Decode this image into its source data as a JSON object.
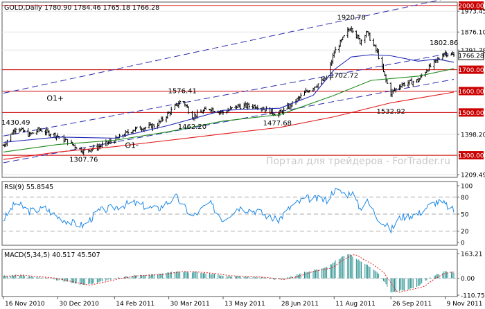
{
  "chart_data": [
    {
      "type": "line",
      "panel": "price",
      "title": "GOLD,Daily",
      "ohlc_header": "1780.90 1784.46 1765.18 1766.28",
      "current_price": "1766.28",
      "ylim": [
        1209.49,
        2000
      ],
      "y_ticks": [
        "2000.00",
        "1973.45",
        "1876.10",
        "1791.78",
        "1700.00",
        "1600.00",
        "1500.00",
        "1398.20",
        "1300.00",
        "1209.49"
      ],
      "y_tick_values": [
        2000,
        1973.45,
        1876.1,
        1791.78,
        1700,
        1600,
        1500,
        1398.2,
        1300,
        1209.49
      ],
      "highlighted_levels": [
        {
          "label": "2000.00",
          "value": 2000
        },
        {
          "label": "1700.00",
          "value": 1700
        },
        {
          "label": "1600.00",
          "value": 1600
        },
        {
          "label": "1500.00",
          "value": 1500
        },
        {
          "label": "1300.00",
          "value": 1300
        }
      ],
      "x_ticks": [
        "16 Nov 2010",
        "30 Dec 2010",
        "14 Feb 2011",
        "30 Mar 2011",
        "13 May 2011",
        "28 Jun 2011",
        "11 Aug 2011",
        "26 Sep 2011",
        "9 Nov 2011"
      ],
      "price_annotations": [
        {
          "label": "1430.49",
          "date": "2010-11-26",
          "value": 1430.49
        },
        {
          "label": "1307.76",
          "date": "2011-01-20",
          "value": 1307.76
        },
        {
          "label": "1576.41",
          "date": "2011-04-10",
          "value": 1576.41
        },
        {
          "label": "1462.20",
          "date": "2011-04-18",
          "value": 1462.2
        },
        {
          "label": "1477.68",
          "date": "2011-06-26",
          "value": 1477.68
        },
        {
          "label": "1920.78",
          "date": "2011-08-25",
          "value": 1920.78
        },
        {
          "label": "1702.72",
          "date": "2011-08-19",
          "value": 1702.72
        },
        {
          "label": "1532.92",
          "date": "2011-09-26",
          "value": 1532.92
        },
        {
          "label": "1802.86",
          "date": "2011-11-08",
          "value": 1802.86
        }
      ],
      "text_annotations": [
        {
          "label": "O1+",
          "date": "2010-12-28",
          "value": 1555
        },
        {
          "label": "O1-",
          "date": "2011-02-28",
          "value": 1335
        }
      ],
      "channel_lines": [
        {
          "from": [
            "2010-11-16",
            1590
          ],
          "to": [
            "2011-11-16",
            2040
          ]
        },
        {
          "from": [
            "2010-11-16",
            1390
          ],
          "to": [
            "2011-11-16",
            1780
          ]
        },
        {
          "from": [
            "2010-11-16",
            1265
          ],
          "to": [
            "2011-11-16",
            1655
          ]
        }
      ],
      "watermark": "Портал для трейдеров - ForTrader.ru",
      "colors": {
        "bars": "#000000",
        "ma_fast": "#1f27b4",
        "ma_mid": "#1e8a1e",
        "ma_slow": "#e31a1a",
        "levels": "#cc0000",
        "channel": "#2a2ab0",
        "label_bg": "#cc0000"
      },
      "price_keypoints": [
        [
          "2010-11-16",
          1345
        ],
        [
          "2010-11-26",
          1430
        ],
        [
          "2010-12-07",
          1395
        ],
        [
          "2010-12-15",
          1420
        ],
        [
          "2010-12-30",
          1390
        ],
        [
          "2011-01-20",
          1320
        ],
        [
          "2011-02-01",
          1340
        ],
        [
          "2011-02-14",
          1370
        ],
        [
          "2011-03-01",
          1420
        ],
        [
          "2011-03-20",
          1440
        ],
        [
          "2011-04-10",
          1560
        ],
        [
          "2011-04-18",
          1480
        ],
        [
          "2011-05-02",
          1520
        ],
        [
          "2011-05-13",
          1500
        ],
        [
          "2011-05-25",
          1530
        ],
        [
          "2011-06-10",
          1530
        ],
        [
          "2011-06-26",
          1490
        ],
        [
          "2011-07-08",
          1540
        ],
        [
          "2011-07-20",
          1600
        ],
        [
          "2011-08-05",
          1660
        ],
        [
          "2011-08-11",
          1780
        ],
        [
          "2011-08-22",
          1880
        ],
        [
          "2011-08-25",
          1900
        ],
        [
          "2011-09-01",
          1830
        ],
        [
          "2011-09-06",
          1880
        ],
        [
          "2011-09-15",
          1780
        ],
        [
          "2011-09-22",
          1650
        ],
        [
          "2011-09-26",
          1590
        ],
        [
          "2011-10-04",
          1630
        ],
        [
          "2011-10-18",
          1650
        ],
        [
          "2011-10-25",
          1700
        ],
        [
          "2011-11-02",
          1740
        ],
        [
          "2011-11-08",
          1780
        ],
        [
          "2011-11-16",
          1766
        ]
      ],
      "ma_fast_keypoints": [
        [
          "2010-11-16",
          1360
        ],
        [
          "2010-12-30",
          1385
        ],
        [
          "2011-02-14",
          1380
        ],
        [
          "2011-03-30",
          1440
        ],
        [
          "2011-05-13",
          1510
        ],
        [
          "2011-06-28",
          1520
        ],
        [
          "2011-07-25",
          1580
        ],
        [
          "2011-08-11",
          1700
        ],
        [
          "2011-08-25",
          1760
        ],
        [
          "2011-09-10",
          1770
        ],
        [
          "2011-09-26",
          1765
        ],
        [
          "2011-10-18",
          1740
        ],
        [
          "2011-11-02",
          1750
        ],
        [
          "2011-11-16",
          1735
        ]
      ],
      "ma_mid_keypoints": [
        [
          "2010-11-16",
          1315
        ],
        [
          "2010-12-30",
          1350
        ],
        [
          "2011-02-14",
          1370
        ],
        [
          "2011-03-30",
          1410
        ],
        [
          "2011-05-13",
          1460
        ],
        [
          "2011-06-28",
          1490
        ],
        [
          "2011-08-11",
          1580
        ],
        [
          "2011-09-10",
          1650
        ],
        [
          "2011-10-18",
          1670
        ],
        [
          "2011-11-16",
          1705
        ]
      ],
      "ma_slow_keypoints": [
        [
          "2010-11-16",
          1280
        ],
        [
          "2010-12-30",
          1315
        ],
        [
          "2011-02-14",
          1340
        ],
        [
          "2011-03-30",
          1370
        ],
        [
          "2011-05-13",
          1400
        ],
        [
          "2011-06-28",
          1430
        ],
        [
          "2011-08-11",
          1480
        ],
        [
          "2011-09-26",
          1545
        ],
        [
          "2011-11-16",
          1595
        ]
      ]
    },
    {
      "type": "line",
      "panel": "rsi",
      "title": "RSI(9) 55.8545",
      "ylim": [
        0,
        100
      ],
      "y_ticks": [
        "100",
        "80",
        "50",
        "20",
        "0"
      ],
      "y_tick_values": [
        100,
        80,
        50,
        20,
        0
      ],
      "dashed_levels": [
        80,
        50,
        20
      ],
      "color": "#1e88e5",
      "keypoints": [
        [
          "2010-11-16",
          40
        ],
        [
          "2010-11-26",
          70
        ],
        [
          "2010-12-07",
          55
        ],
        [
          "2010-12-20",
          60
        ],
        [
          "2010-12-30",
          45
        ],
        [
          "2011-01-10",
          35
        ],
        [
          "2011-01-20",
          30
        ],
        [
          "2011-02-01",
          55
        ],
        [
          "2011-02-14",
          62
        ],
        [
          "2011-03-01",
          70
        ],
        [
          "2011-03-20",
          58
        ],
        [
          "2011-04-05",
          80
        ],
        [
          "2011-04-18",
          45
        ],
        [
          "2011-05-02",
          70
        ],
        [
          "2011-05-13",
          40
        ],
        [
          "2011-05-25",
          62
        ],
        [
          "2011-06-10",
          55
        ],
        [
          "2011-06-26",
          38
        ],
        [
          "2011-07-08",
          65
        ],
        [
          "2011-07-20",
          78
        ],
        [
          "2011-08-05",
          75
        ],
        [
          "2011-08-11",
          92
        ],
        [
          "2011-08-22",
          85
        ],
        [
          "2011-08-25",
          90
        ],
        [
          "2011-09-01",
          60
        ],
        [
          "2011-09-06",
          75
        ],
        [
          "2011-09-15",
          45
        ],
        [
          "2011-09-22",
          30
        ],
        [
          "2011-09-26",
          22
        ],
        [
          "2011-10-04",
          45
        ],
        [
          "2011-10-18",
          50
        ],
        [
          "2011-10-25",
          62
        ],
        [
          "2011-11-02",
          72
        ],
        [
          "2011-11-08",
          68
        ],
        [
          "2011-11-16",
          56
        ]
      ]
    },
    {
      "type": "bar",
      "panel": "macd",
      "title": "MACD(5,34,5) 40.517 45.507",
      "ylim": [
        -110.751,
        163.21
      ],
      "y_ticks": [
        "163.21",
        "0.00",
        "-110.751"
      ],
      "y_tick_values": [
        163.21,
        0,
        -110.751
      ],
      "colors": {
        "histogram": "#1f8a8a",
        "signal": "#e31a1a"
      },
      "keypoints": [
        [
          "2010-11-16",
          15
        ],
        [
          "2010-11-26",
          22
        ],
        [
          "2010-12-07",
          12
        ],
        [
          "2010-12-20",
          5
        ],
        [
          "2010-12-30",
          -10
        ],
        [
          "2011-01-10",
          -30
        ],
        [
          "2011-01-20",
          -45
        ],
        [
          "2011-02-01",
          -25
        ],
        [
          "2011-02-14",
          0
        ],
        [
          "2011-03-01",
          18
        ],
        [
          "2011-03-20",
          25
        ],
        [
          "2011-04-05",
          45
        ],
        [
          "2011-04-18",
          42
        ],
        [
          "2011-05-02",
          32
        ],
        [
          "2011-05-13",
          18
        ],
        [
          "2011-05-25",
          12
        ],
        [
          "2011-06-10",
          8
        ],
        [
          "2011-06-26",
          -8
        ],
        [
          "2011-07-08",
          12
        ],
        [
          "2011-07-20",
          45
        ],
        [
          "2011-08-05",
          70
        ],
        [
          "2011-08-11",
          110
        ],
        [
          "2011-08-22",
          160
        ],
        [
          "2011-08-25",
          150
        ],
        [
          "2011-09-01",
          115
        ],
        [
          "2011-09-06",
          95
        ],
        [
          "2011-09-15",
          40
        ],
        [
          "2011-09-22",
          -40
        ],
        [
          "2011-09-26",
          -95
        ],
        [
          "2011-10-04",
          -80
        ],
        [
          "2011-10-18",
          -55
        ],
        [
          "2011-10-25",
          -10
        ],
        [
          "2011-11-02",
          25
        ],
        [
          "2011-11-08",
          42
        ],
        [
          "2011-11-16",
          40
        ]
      ]
    }
  ]
}
